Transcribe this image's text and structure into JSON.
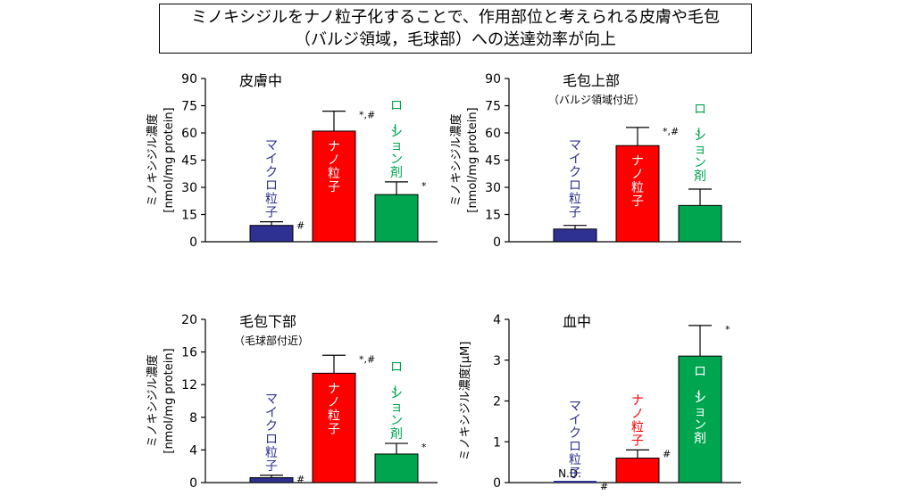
{
  "headline": {
    "line1": "ミノキシジルをナノ粒子化することで、作用部位と考えられる皮膚や毛包",
    "line2": "（バルジ領域，毛球部）への送達効率が向上"
  },
  "colors": {
    "blue": "#2e3192",
    "red": "#ff0000",
    "green": "#00a550",
    "axis": "#000000"
  },
  "chart_data": [
    {
      "type": "bar",
      "title": "皮膚中",
      "subtitle": "",
      "ylabel": "ミノキシジル濃度\n[nmol/mg protein]",
      "ylim": [
        0,
        90
      ],
      "yticks": [
        0,
        15,
        30,
        45,
        60,
        75,
        90
      ],
      "categories": [
        "マイクロ粒子",
        "ナノ粒子",
        "ローション剤"
      ],
      "values": [
        9,
        61,
        26
      ],
      "errors": [
        2,
        11,
        7
      ],
      "marks": [
        "#",
        "*,#",
        "*"
      ],
      "nd": [
        "",
        "",
        ""
      ]
    },
    {
      "type": "bar",
      "title": "毛包上部",
      "subtitle": "（バルジ領域付近）",
      "ylabel": "ミノキシジル濃度\n[nmol/mg protein]",
      "ylim": [
        0,
        90
      ],
      "yticks": [
        0,
        15,
        30,
        45,
        60,
        75,
        90
      ],
      "categories": [
        "マイクロ粒子",
        "ナノ粒子",
        "ローション剤"
      ],
      "values": [
        7,
        53,
        20
      ],
      "errors": [
        2,
        10,
        9
      ],
      "marks": [
        "",
        "*,#",
        ""
      ],
      "nd": [
        "",
        "",
        ""
      ]
    },
    {
      "type": "bar",
      "title": "毛包下部",
      "subtitle": "（毛球部付近）",
      "ylabel": "ミノキシジル濃度\n[nmol/mg protein]",
      "ylim": [
        0,
        20
      ],
      "yticks": [
        0,
        4,
        8,
        12,
        16,
        20
      ],
      "categories": [
        "マイクロ粒子",
        "ナノ粒子",
        "ローション剤"
      ],
      "values": [
        0.6,
        13.4,
        3.5
      ],
      "errors": [
        0.3,
        2.2,
        1.3
      ],
      "marks": [
        "#",
        "*,#",
        "*"
      ],
      "nd": [
        "",
        "",
        ""
      ]
    },
    {
      "type": "bar",
      "title": "血中",
      "subtitle": "",
      "ylabel": "ミノキシジル濃度[μM]",
      "ylim": [
        0,
        4
      ],
      "yticks": [
        0,
        1,
        2,
        3,
        4
      ],
      "categories": [
        "マイクロ粒子",
        "ナノ粒子",
        "ローション剤"
      ],
      "values": [
        0,
        0.6,
        3.1
      ],
      "errors": [
        0,
        0.2,
        0.75
      ],
      "marks": [
        "#",
        "#",
        "*"
      ],
      "nd": [
        "N.D.",
        "",
        ""
      ]
    }
  ]
}
